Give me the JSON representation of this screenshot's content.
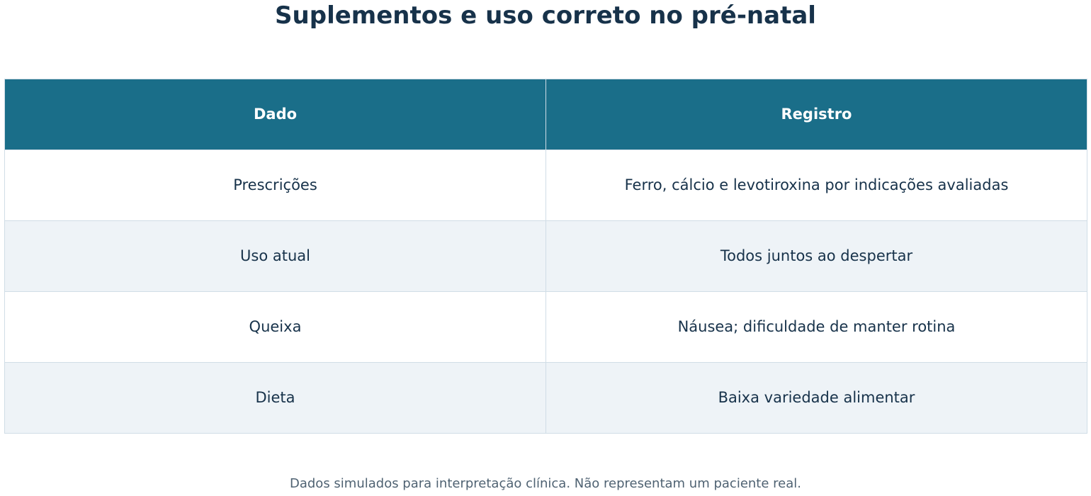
{
  "title": "Suplementos e uso correto no pré-natal",
  "table": {
    "header": [
      "Dado",
      "Registro"
    ],
    "rows": [
      [
        "Prescrições",
        "Ferro, cálcio e levotiroxina por indicações avaliadas"
      ],
      [
        "Uso atual",
        "Todos juntos ao despertar"
      ],
      [
        "Queixa",
        "Náusea; dificuldade de manter rotina"
      ],
      [
        "Dieta",
        "Baixa variedade alimentar"
      ]
    ]
  },
  "footnote": "Dados simulados para interpretação clínica. Não representam um paciente real."
}
